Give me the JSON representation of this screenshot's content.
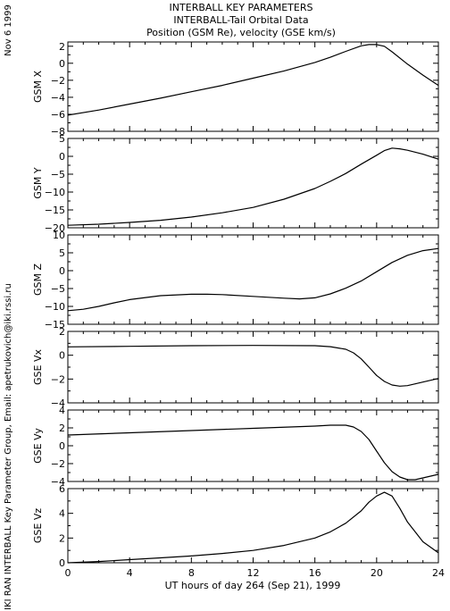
{
  "header": {
    "title_line1": "INTERBALL KEY PARAMETERS",
    "title_line2": "INTERBALL-Tail Orbital Data",
    "title_line3": "Position (GSM Re), velocity (GSE km/s)"
  },
  "side": {
    "date": "Nov  6 1999",
    "credit": "IKI RAN INTERBALL Key Parameter Group, Email: apetrukovich@iki.rssi.ru"
  },
  "footer": {
    "xaxis_label": "UT hours of day 264 (Sep 21), 1999"
  },
  "chart_data": {
    "type": "line",
    "x_ticks": [
      0,
      4,
      8,
      12,
      16,
      20,
      24
    ],
    "xlim": [
      0,
      24
    ],
    "panels": [
      {
        "ylabel": "GSM X",
        "ylim": [
          -8,
          2.5
        ],
        "yticks": [
          -8,
          -6,
          -4,
          -2,
          0,
          2
        ],
        "x": [
          0,
          2,
          4,
          6,
          8,
          10,
          12,
          14,
          16,
          17,
          18,
          19,
          19.5,
          20,
          20.5,
          21,
          22,
          23,
          24
        ],
        "y": [
          -6.1,
          -5.5,
          -4.8,
          -4.1,
          -3.35,
          -2.6,
          -1.75,
          -0.9,
          0.1,
          0.7,
          1.4,
          2.05,
          2.2,
          2.2,
          2.0,
          1.35,
          -0.1,
          -1.4,
          -2.6
        ]
      },
      {
        "ylabel": "GSM Y",
        "ylim": [
          -20,
          5
        ],
        "yticks": [
          -20,
          -15,
          -10,
          -5,
          0,
          5
        ],
        "x": [
          0,
          2,
          4,
          6,
          8,
          10,
          12,
          14,
          16,
          17,
          18,
          19,
          20,
          20.5,
          21,
          21.5,
          22,
          23,
          24
        ],
        "y": [
          -19.3,
          -19.0,
          -18.5,
          -17.9,
          -17.0,
          -15.8,
          -14.3,
          -12.0,
          -9.0,
          -7.0,
          -4.8,
          -2.2,
          0.3,
          1.6,
          2.3,
          2.1,
          1.7,
          0.6,
          -0.8
        ]
      },
      {
        "ylabel": "GSM Z",
        "ylim": [
          -15,
          10
        ],
        "yticks": [
          -15,
          -10,
          -5,
          0,
          5,
          10
        ],
        "x": [
          0,
          1,
          2,
          3,
          4,
          6,
          8,
          9,
          10,
          12,
          14,
          15,
          16,
          17,
          18,
          19,
          20,
          21,
          22,
          23,
          24
        ],
        "y": [
          -11.2,
          -10.8,
          -10.0,
          -9.0,
          -8.1,
          -7.0,
          -6.6,
          -6.6,
          -6.7,
          -7.2,
          -7.7,
          -7.9,
          -7.6,
          -6.5,
          -4.9,
          -2.9,
          -0.3,
          2.3,
          4.3,
          5.6,
          6.2
        ]
      },
      {
        "ylabel": "GSE Vx",
        "ylim": [
          -4,
          2
        ],
        "yticks": [
          -4,
          -2,
          0,
          2
        ],
        "x": [
          0,
          4,
          8,
          12,
          16,
          17,
          18,
          18.5,
          19,
          19.5,
          20,
          20.5,
          21,
          21.5,
          22,
          22.5,
          23,
          24
        ],
        "y": [
          0.7,
          0.75,
          0.8,
          0.82,
          0.8,
          0.72,
          0.5,
          0.2,
          -0.3,
          -1.0,
          -1.7,
          -2.2,
          -2.5,
          -2.6,
          -2.55,
          -2.4,
          -2.25,
          -1.95
        ]
      },
      {
        "ylabel": "GSE Vy",
        "ylim": [
          -4,
          4
        ],
        "yticks": [
          -4,
          -2,
          0,
          2,
          4
        ],
        "x": [
          0,
          4,
          8,
          12,
          16,
          17,
          18,
          18.5,
          19,
          19.5,
          20,
          20.5,
          21,
          21.5,
          22,
          22.5,
          23,
          24
        ],
        "y": [
          1.2,
          1.45,
          1.7,
          1.95,
          2.2,
          2.3,
          2.3,
          2.1,
          1.6,
          0.7,
          -0.6,
          -1.9,
          -2.9,
          -3.5,
          -3.8,
          -3.8,
          -3.6,
          -3.2
        ]
      },
      {
        "ylabel": "GSE Vz",
        "ylim": [
          0,
          6
        ],
        "yticks": [
          0,
          2,
          4,
          6
        ],
        "x": [
          0,
          2,
          4,
          6,
          8,
          10,
          12,
          14,
          16,
          17,
          18,
          19,
          19.5,
          20,
          20.5,
          21,
          21.5,
          22,
          23,
          24
        ],
        "y": [
          0.0,
          0.1,
          0.25,
          0.4,
          0.55,
          0.75,
          1.0,
          1.4,
          2.0,
          2.5,
          3.2,
          4.2,
          4.9,
          5.4,
          5.7,
          5.4,
          4.4,
          3.3,
          1.7,
          0.8
        ]
      }
    ]
  }
}
